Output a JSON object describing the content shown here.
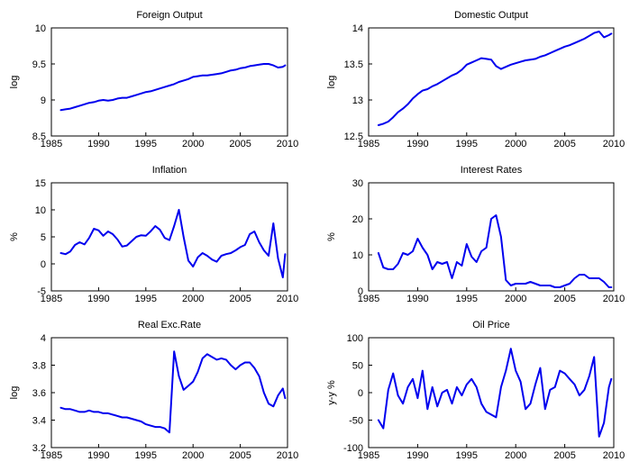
{
  "chart_data": [
    {
      "type": "line",
      "title": "Foreign Output",
      "ylabel": "log",
      "xlabel": "",
      "xlim": [
        1985,
        2010
      ],
      "ylim": [
        8.5,
        10
      ],
      "xticks": [
        1985,
        1990,
        1995,
        2000,
        2005,
        2010
      ],
      "yticks": [
        8.5,
        9,
        9.5,
        10
      ],
      "ytick_labels": [
        "8.5",
        "9",
        "9.5",
        "10"
      ],
      "series": [
        {
          "color": "#0000ee",
          "x": [
            1986.0,
            1986.5,
            1987.0,
            1987.5,
            1988.0,
            1988.5,
            1989.0,
            1989.5,
            1990.0,
            1990.5,
            1991.0,
            1991.5,
            1992.0,
            1992.5,
            1993.0,
            1993.5,
            1994.0,
            1994.5,
            1995.0,
            1995.5,
            1996.0,
            1996.5,
            1997.0,
            1997.5,
            1998.0,
            1998.5,
            1999.0,
            1999.5,
            2000.0,
            2000.5,
            2001.0,
            2001.5,
            2002.0,
            2002.5,
            2003.0,
            2003.5,
            2004.0,
            2004.5,
            2005.0,
            2005.5,
            2006.0,
            2006.5,
            2007.0,
            2007.5,
            2008.0,
            2008.5,
            2009.0,
            2009.5,
            2009.75
          ],
          "y": [
            8.86,
            8.87,
            8.88,
            8.9,
            8.92,
            8.94,
            8.96,
            8.97,
            8.99,
            9.0,
            8.99,
            9.0,
            9.02,
            9.03,
            9.03,
            9.05,
            9.07,
            9.09,
            9.11,
            9.12,
            9.14,
            9.16,
            9.18,
            9.2,
            9.22,
            9.25,
            9.27,
            9.29,
            9.32,
            9.33,
            9.34,
            9.34,
            9.35,
            9.36,
            9.37,
            9.39,
            9.41,
            9.42,
            9.44,
            9.45,
            9.47,
            9.48,
            9.49,
            9.5,
            9.5,
            9.48,
            9.45,
            9.46,
            9.48
          ]
        }
      ]
    },
    {
      "type": "line",
      "title": "Domestic Output",
      "ylabel": "log",
      "xlabel": "",
      "xlim": [
        1985,
        2010
      ],
      "ylim": [
        12.5,
        14
      ],
      "xticks": [
        1985,
        1990,
        1995,
        2000,
        2005,
        2010
      ],
      "yticks": [
        12.5,
        13,
        13.5,
        14
      ],
      "ytick_labels": [
        "12.5",
        "13",
        "13.5",
        "14"
      ],
      "series": [
        {
          "color": "#0000ee",
          "x": [
            1986.0,
            1986.5,
            1987.0,
            1987.5,
            1988.0,
            1988.5,
            1989.0,
            1989.5,
            1990.0,
            1990.5,
            1991.0,
            1991.5,
            1992.0,
            1992.5,
            1993.0,
            1993.5,
            1994.0,
            1994.5,
            1995.0,
            1995.5,
            1996.0,
            1996.5,
            1997.0,
            1997.5,
            1998.0,
            1998.5,
            1999.0,
            1999.5,
            2000.0,
            2000.5,
            2001.0,
            2001.5,
            2002.0,
            2002.5,
            2003.0,
            2003.5,
            2004.0,
            2004.5,
            2005.0,
            2005.5,
            2006.0,
            2006.5,
            2007.0,
            2007.5,
            2008.0,
            2008.5,
            2009.0,
            2009.5,
            2009.75
          ],
          "y": [
            12.65,
            12.67,
            12.7,
            12.76,
            12.83,
            12.88,
            12.94,
            13.02,
            13.08,
            13.13,
            13.15,
            13.19,
            13.22,
            13.26,
            13.3,
            13.34,
            13.37,
            13.42,
            13.49,
            13.52,
            13.55,
            13.58,
            13.57,
            13.56,
            13.47,
            13.43,
            13.46,
            13.49,
            13.51,
            13.53,
            13.55,
            13.56,
            13.57,
            13.6,
            13.62,
            13.65,
            13.68,
            13.71,
            13.74,
            13.76,
            13.79,
            13.82,
            13.85,
            13.89,
            13.93,
            13.95,
            13.87,
            13.9,
            13.92
          ]
        }
      ]
    },
    {
      "type": "line",
      "title": "Inflation",
      "ylabel": "%",
      "xlabel": "",
      "xlim": [
        1985,
        2010
      ],
      "ylim": [
        -5,
        15
      ],
      "xticks": [
        1985,
        1990,
        1995,
        2000,
        2005,
        2010
      ],
      "yticks": [
        -5,
        0,
        5,
        10,
        15
      ],
      "ytick_labels": [
        "-5",
        "0",
        "5",
        "10",
        "15"
      ],
      "series": [
        {
          "color": "#0000ee",
          "x": [
            1986.0,
            1986.5,
            1987.0,
            1987.5,
            1988.0,
            1988.5,
            1989.0,
            1989.5,
            1990.0,
            1990.5,
            1991.0,
            1991.5,
            1992.0,
            1992.5,
            1993.0,
            1993.5,
            1994.0,
            1994.5,
            1995.0,
            1995.5,
            1996.0,
            1996.5,
            1997.0,
            1997.5,
            1998.0,
            1998.5,
            1999.0,
            1999.5,
            2000.0,
            2000.5,
            2001.0,
            2001.5,
            2002.0,
            2002.5,
            2003.0,
            2003.5,
            2004.0,
            2004.5,
            2005.0,
            2005.5,
            2006.0,
            2006.5,
            2007.0,
            2007.5,
            2008.0,
            2008.5,
            2009.0,
            2009.5,
            2009.75
          ],
          "y": [
            2.0,
            1.8,
            2.3,
            3.5,
            4.0,
            3.6,
            4.8,
            6.5,
            6.2,
            5.2,
            6.0,
            5.5,
            4.5,
            3.2,
            3.4,
            4.2,
            5.0,
            5.3,
            5.2,
            6.0,
            7.0,
            6.3,
            4.8,
            4.4,
            7.0,
            10.0,
            5.0,
            0.6,
            -0.5,
            1.2,
            2.0,
            1.5,
            0.8,
            0.4,
            1.5,
            1.8,
            2.0,
            2.5,
            3.1,
            3.5,
            5.5,
            6.0,
            4.0,
            2.5,
            1.5,
            7.5,
            1.0,
            -2.5,
            1.8
          ]
        }
      ]
    },
    {
      "type": "line",
      "title": "Interest Rates",
      "ylabel": "%",
      "xlabel": "",
      "xlim": [
        1985,
        2010
      ],
      "ylim": [
        0,
        30
      ],
      "xticks": [
        1985,
        1990,
        1995,
        2000,
        2005,
        2010
      ],
      "yticks": [
        0,
        10,
        20,
        30
      ],
      "ytick_labels": [
        "0",
        "10",
        "20",
        "30"
      ],
      "series": [
        {
          "color": "#0000ee",
          "x": [
            1986.0,
            1986.5,
            1987.0,
            1987.5,
            1988.0,
            1988.5,
            1989.0,
            1989.5,
            1990.0,
            1990.5,
            1991.0,
            1991.5,
            1992.0,
            1992.5,
            1993.0,
            1993.5,
            1994.0,
            1994.5,
            1995.0,
            1995.5,
            1996.0,
            1996.5,
            1997.0,
            1997.5,
            1998.0,
            1998.5,
            1999.0,
            1999.5,
            2000.0,
            2000.5,
            2001.0,
            2001.5,
            2002.0,
            2002.5,
            2003.0,
            2003.5,
            2004.0,
            2004.5,
            2005.0,
            2005.5,
            2006.0,
            2006.5,
            2007.0,
            2007.5,
            2008.0,
            2008.5,
            2009.0,
            2009.5,
            2009.75
          ],
          "y": [
            10.5,
            6.5,
            6.0,
            6.0,
            7.5,
            10.5,
            10.0,
            11.0,
            14.5,
            12.0,
            10.0,
            6.0,
            8.0,
            7.5,
            8.0,
            3.5,
            8.0,
            7.0,
            13.0,
            9.5,
            8.0,
            11.0,
            12.0,
            20.0,
            21.0,
            15.0,
            3.0,
            1.5,
            2.0,
            2.0,
            2.0,
            2.5,
            2.0,
            1.5,
            1.5,
            1.5,
            1.0,
            1.0,
            1.5,
            2.0,
            3.5,
            4.5,
            4.5,
            3.5,
            3.5,
            3.5,
            2.5,
            1.0,
            1.0
          ]
        }
      ]
    },
    {
      "type": "line",
      "title": "Real Exc.Rate",
      "ylabel": "log",
      "xlabel": "",
      "xlim": [
        1985,
        2010
      ],
      "ylim": [
        3.2,
        4
      ],
      "xticks": [
        1985,
        1990,
        1995,
        2000,
        2005,
        2010
      ],
      "yticks": [
        3.2,
        3.4,
        3.6,
        3.8,
        4
      ],
      "ytick_labels": [
        "3.2",
        "3.4",
        "3.6",
        "3.8",
        "4"
      ],
      "series": [
        {
          "color": "#0000ee",
          "x": [
            1986.0,
            1986.5,
            1987.0,
            1987.5,
            1988.0,
            1988.5,
            1989.0,
            1989.5,
            1990.0,
            1990.5,
            1991.0,
            1991.5,
            1992.0,
            1992.5,
            1993.0,
            1993.5,
            1994.0,
            1994.5,
            1995.0,
            1995.5,
            1996.0,
            1996.5,
            1997.0,
            1997.5,
            1998.0,
            1998.5,
            1999.0,
            1999.5,
            2000.0,
            2000.5,
            2001.0,
            2001.5,
            2002.0,
            2002.5,
            2003.0,
            2003.5,
            2004.0,
            2004.5,
            2005.0,
            2005.5,
            2006.0,
            2006.5,
            2007.0,
            2007.5,
            2008.0,
            2008.5,
            2009.0,
            2009.5,
            2009.75
          ],
          "y": [
            3.49,
            3.48,
            3.48,
            3.47,
            3.46,
            3.46,
            3.47,
            3.46,
            3.46,
            3.45,
            3.45,
            3.44,
            3.43,
            3.42,
            3.42,
            3.41,
            3.4,
            3.39,
            3.37,
            3.36,
            3.35,
            3.35,
            3.34,
            3.31,
            3.9,
            3.72,
            3.62,
            3.65,
            3.68,
            3.75,
            3.85,
            3.88,
            3.86,
            3.84,
            3.85,
            3.84,
            3.8,
            3.77,
            3.8,
            3.82,
            3.82,
            3.78,
            3.72,
            3.6,
            3.52,
            3.5,
            3.58,
            3.63,
            3.56
          ]
        }
      ]
    },
    {
      "type": "line",
      "title": "Oil Price",
      "ylabel": "y-y %",
      "xlabel": "",
      "xlim": [
        1985,
        2010
      ],
      "ylim": [
        -100,
        100
      ],
      "xticks": [
        1985,
        1990,
        1995,
        2000,
        2005,
        2010
      ],
      "yticks": [
        -100,
        -50,
        0,
        50,
        100
      ],
      "ytick_labels": [
        "-100",
        "-50",
        "0",
        "50",
        "100"
      ],
      "series": [
        {
          "color": "#0000ee",
          "x": [
            1986.0,
            1986.5,
            1987.0,
            1987.5,
            1988.0,
            1988.5,
            1989.0,
            1989.5,
            1990.0,
            1990.5,
            1991.0,
            1991.5,
            1992.0,
            1992.5,
            1993.0,
            1993.5,
            1994.0,
            1994.5,
            1995.0,
            1995.5,
            1996.0,
            1996.5,
            1997.0,
            1997.5,
            1998.0,
            1998.5,
            1999.0,
            1999.5,
            2000.0,
            2000.5,
            2001.0,
            2001.5,
            2002.0,
            2002.5,
            2003.0,
            2003.5,
            2004.0,
            2004.5,
            2005.0,
            2005.5,
            2006.0,
            2006.5,
            2007.0,
            2007.5,
            2008.0,
            2008.5,
            2009.0,
            2009.5,
            2009.75
          ],
          "y": [
            -50,
            -65,
            5,
            35,
            -5,
            -20,
            10,
            25,
            -10,
            40,
            -30,
            10,
            -25,
            0,
            5,
            -20,
            10,
            -5,
            15,
            25,
            10,
            -20,
            -35,
            -40,
            -45,
            10,
            40,
            80,
            40,
            20,
            -30,
            -20,
            15,
            45,
            -30,
            5,
            10,
            40,
            35,
            25,
            15,
            -5,
            5,
            30,
            65,
            -80,
            -55,
            10,
            25
          ]
        }
      ]
    }
  ]
}
